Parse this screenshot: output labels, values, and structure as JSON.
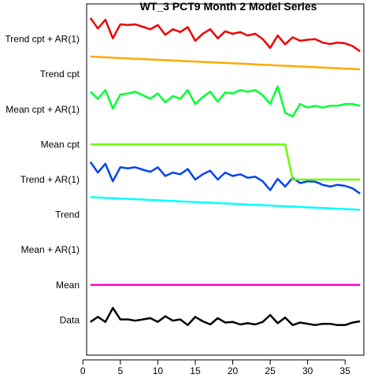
{
  "chart_data": {
    "type": "line",
    "title": "WT_3 PCT9 Month 2 Model Series",
    "xlabel": "",
    "ylabel": "",
    "xlim": [
      0.5,
      37.5
    ],
    "x_ticks": [
      0,
      5,
      10,
      15,
      20,
      25,
      30,
      35
    ],
    "grid": false,
    "row_labels": [
      "Data",
      "Mean",
      "Mean + AR(1)",
      "Trend",
      "Trend + AR(1)",
      "Mean cpt",
      "Mean cpt + AR(1)",
      "Trend cpt",
      "Trend cpt + AR(1)"
    ],
    "series": [
      {
        "name": "Data",
        "color": "#000000",
        "offset": 1,
        "values": [
          1.03,
          0.95,
          1.03,
          0.81,
          0.99,
          0.99,
          1.01,
          0.99,
          0.97,
          1.03,
          0.94,
          1.01,
          0.99,
          1.08,
          0.95,
          1.02,
          1.07,
          0.97,
          1.04,
          1.03,
          1.07,
          1.05,
          1.07,
          1.03,
          0.92,
          1.05,
          0.96,
          1.08,
          1.04,
          1.06,
          1.08,
          1.06,
          1.06,
          1.08,
          1.08,
          1.04,
          1.02
        ]
      },
      {
        "name": "Mean",
        "color": "#ff00cc",
        "offset": 2,
        "values": [
          1,
          1,
          1,
          1,
          1,
          1,
          1,
          1,
          1,
          1,
          1,
          1,
          1,
          1,
          1,
          1,
          1,
          1,
          1,
          1,
          1,
          1,
          1,
          1,
          1,
          1,
          1,
          1,
          1,
          1,
          1,
          1,
          1,
          1,
          1,
          1,
          1
        ]
      },
      {
        "name": "Trend",
        "color": "#00ffff",
        "offset": 4,
        "values": [
          0.5,
          0.51,
          0.52,
          0.53,
          0.54,
          0.55,
          0.56,
          0.57,
          0.58,
          0.59,
          0.6,
          0.61,
          0.62,
          0.63,
          0.64,
          0.65,
          0.66,
          0.67,
          0.68,
          0.69,
          0.7,
          0.71,
          0.72,
          0.73,
          0.74,
          0.75,
          0.76,
          0.77,
          0.78,
          0.79,
          0.8,
          0.81,
          0.82,
          0.83,
          0.84,
          0.85,
          0.86
        ]
      },
      {
        "name": "Trend + AR(1)",
        "color": "#0044ee",
        "offset": 5,
        "values": [
          0.5,
          0.8,
          0.55,
          1.05,
          0.65,
          0.68,
          0.65,
          0.72,
          0.78,
          0.65,
          0.9,
          0.8,
          0.85,
          0.7,
          1.0,
          0.85,
          0.75,
          1.0,
          0.8,
          0.9,
          0.85,
          0.95,
          0.92,
          1.05,
          1.3,
          0.98,
          1.2,
          0.95,
          1.1,
          1.05,
          1.06,
          1.15,
          1.2,
          1.15,
          1.18,
          1.25,
          1.4
        ]
      },
      {
        "name": "Mean cpt",
        "color": "#66ff00",
        "offset": 6,
        "values": [
          1,
          1,
          1,
          1,
          1,
          1,
          1,
          1,
          1,
          1,
          1,
          1,
          1,
          1,
          1,
          1,
          1,
          1,
          1,
          1,
          1,
          1,
          1,
          1,
          1,
          1,
          1,
          2,
          2,
          2,
          2,
          2,
          2,
          2,
          2,
          2,
          2
        ]
      },
      {
        "name": "Mean cpt + AR(1)",
        "color": "#00ff33",
        "offset": 7,
        "values": [
          0.5,
          0.7,
          0.45,
          0.98,
          0.58,
          0.55,
          0.5,
          0.6,
          0.7,
          0.55,
          0.8,
          0.62,
          0.7,
          0.45,
          0.85,
          0.65,
          0.5,
          0.78,
          0.52,
          0.55,
          0.45,
          0.5,
          0.45,
          0.6,
          0.85,
          0.35,
          1.1,
          1.2,
          0.85,
          0.95,
          0.9,
          0.95,
          0.9,
          0.9,
          0.85,
          0.85,
          0.9
        ]
      },
      {
        "name": "Trend cpt",
        "color": "#ffaa00",
        "offset": 8,
        "values": [
          0.5,
          0.51,
          0.52,
          0.53,
          0.54,
          0.55,
          0.56,
          0.57,
          0.58,
          0.59,
          0.6,
          0.61,
          0.62,
          0.63,
          0.64,
          0.65,
          0.66,
          0.67,
          0.68,
          0.69,
          0.7,
          0.71,
          0.72,
          0.73,
          0.74,
          0.75,
          0.76,
          0.77,
          0.78,
          0.79,
          0.8,
          0.81,
          0.82,
          0.83,
          0.84,
          0.85,
          0.86
        ]
      },
      {
        "name": "Trend cpt + AR(1)",
        "color": "#ee0000",
        "offset": 9,
        "values": [
          0.4,
          0.7,
          0.45,
          0.98,
          0.58,
          0.6,
          0.58,
          0.65,
          0.72,
          0.6,
          0.88,
          0.72,
          0.8,
          0.66,
          1.05,
          0.85,
          0.72,
          0.98,
          0.78,
          0.85,
          0.8,
          0.9,
          0.85,
          1.0,
          1.25,
          0.9,
          1.15,
          0.95,
          1.05,
          1.02,
          1.0,
          1.1,
          1.14,
          1.1,
          1.12,
          1.2,
          1.35
        ]
      }
    ]
  }
}
